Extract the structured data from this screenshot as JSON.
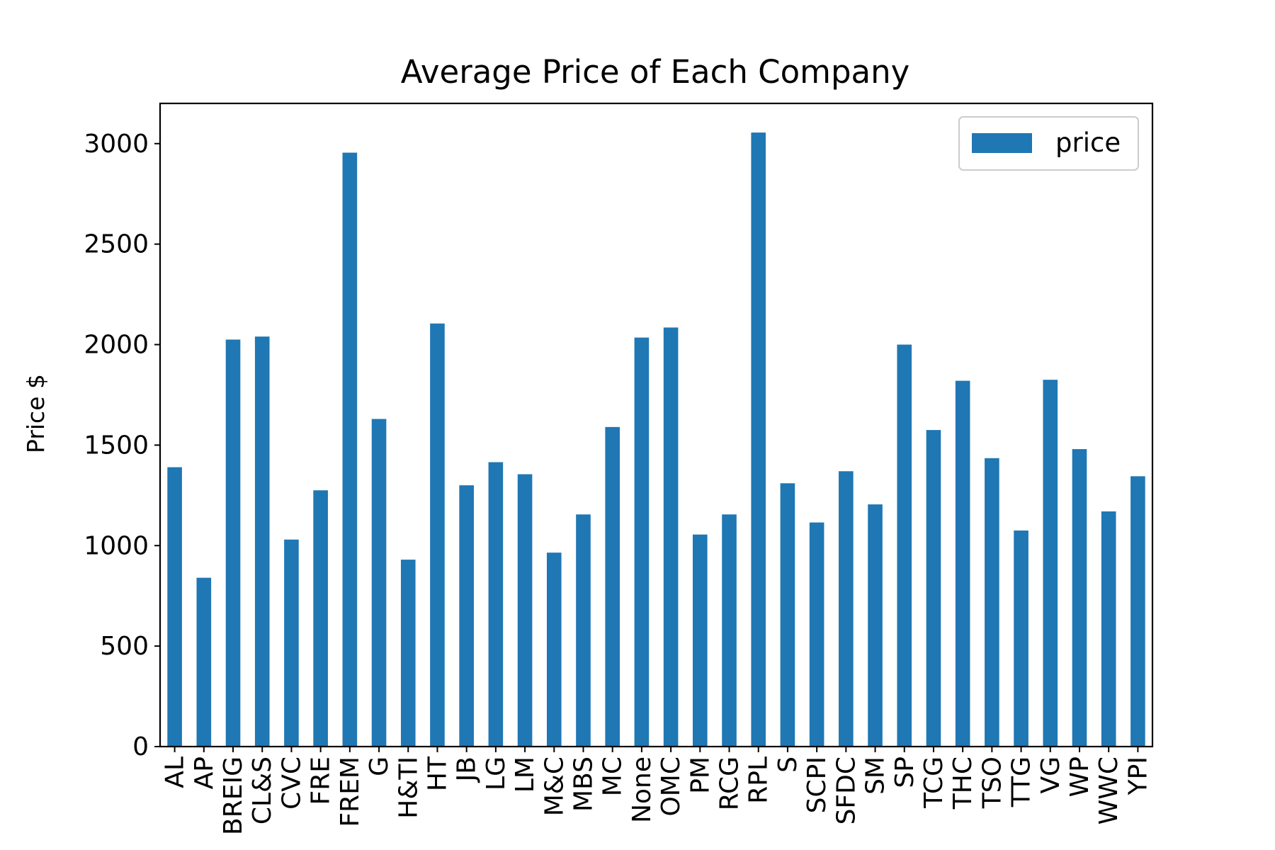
{
  "chart_data": {
    "type": "bar",
    "title": "Average Price of Each Company",
    "ylabel": "Price $",
    "xlabel": "",
    "ylim": [
      0,
      3200
    ],
    "yticks": [
      0,
      500,
      1000,
      1500,
      2000,
      2500,
      3000
    ],
    "grid": false,
    "legend_position": "top-right",
    "bar_color": "#1f77b4",
    "categories": [
      "AL",
      "AP",
      "BREIG",
      "CL&S",
      "CVC",
      "FRE",
      "FREM",
      "G",
      "H&TI",
      "HT",
      "JB",
      "LG",
      "LM",
      "M&C",
      "MBS",
      "MC",
      "None",
      "OMC",
      "PM",
      "RCG",
      "RPL",
      "S",
      "SCPI",
      "SFDC",
      "SM",
      "SP",
      "TCG",
      "THC",
      "TSO",
      "TTG",
      "VG",
      "WP",
      "WWC",
      "YPI"
    ],
    "series": [
      {
        "name": "price",
        "values": [
          1390,
          840,
          2025,
          2040,
          1030,
          1275,
          2955,
          1630,
          930,
          2105,
          1300,
          1415,
          1355,
          965,
          1155,
          1590,
          2035,
          2085,
          1055,
          1155,
          3055,
          1310,
          1115,
          1370,
          1205,
          2000,
          1575,
          1820,
          1435,
          1075,
          1825,
          1480,
          1170,
          1345
        ]
      }
    ]
  }
}
